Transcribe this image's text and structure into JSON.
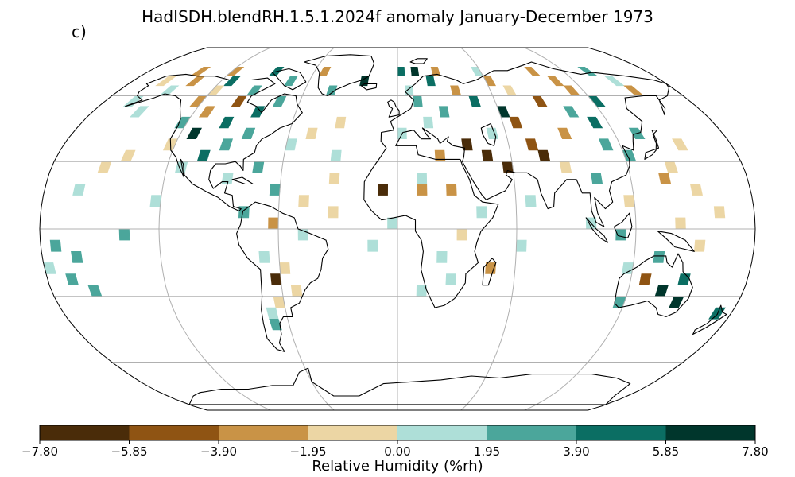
{
  "title": "HadISDH.blendRH.1.5.1.2024f anomaly January-December 1973",
  "panel_label": "c)",
  "colorbar": {
    "label": "Relative Humidity (%rh)",
    "ticks": [
      "−7.80",
      "−5.85",
      "−3.90",
      "−1.95",
      "0.00",
      "1.95",
      "3.90",
      "5.85",
      "7.80"
    ],
    "colors": [
      "#543005",
      "#8c510a",
      "#bf812d",
      "#dfc27d",
      "#f6e8c3",
      "#c7eae5",
      "#80cdc1",
      "#35978f",
      "#01665e",
      "#003c30"
    ],
    "bins": [
      "#4a2c09",
      "#8f5413",
      "#c99346",
      "#ecd6a4",
      "#aedfd8",
      "#4ba69b",
      "#0b6e63",
      "#00362c"
    ]
  },
  "map": {
    "projection": "Robinson",
    "gridlines": true,
    "coastlines": true
  },
  "chart_data": {
    "type": "heatmap",
    "title": "HadISDH.blendRH.1.5.1.2024f anomaly January-December 1973",
    "colorbar_label": "Relative Humidity (%rh)",
    "vmin": -7.8,
    "vmax": 7.8,
    "levels": [
      -7.8,
      -5.85,
      -3.9,
      -1.95,
      0.0,
      1.95,
      3.9,
      5.85,
      7.8
    ],
    "cells": [
      {
        "lat": 72.5,
        "lon": -142.5,
        "v": -2.5
      },
      {
        "lat": 72.5,
        "lon": -117.5,
        "v": -3.0
      },
      {
        "lat": 72.5,
        "lon": -87.5,
        "v": 5.0
      },
      {
        "lat": 72.5,
        "lon": -52.5,
        "v": -3.5
      },
      {
        "lat": 72.5,
        "lon": 2.5,
        "v": 5.5
      },
      {
        "lat": 72.5,
        "lon": 12.5,
        "v": 6.5
      },
      {
        "lat": 72.5,
        "lon": 27.5,
        "v": -2.5
      },
      {
        "lat": 72.5,
        "lon": 57.5,
        "v": 1.0
      },
      {
        "lat": 72.5,
        "lon": 97.5,
        "v": -3.0
      },
      {
        "lat": 72.5,
        "lon": 137.5,
        "v": 2.0
      },
      {
        "lat": 67.5,
        "lon": -157.5,
        "v": -1.5
      },
      {
        "lat": 67.5,
        "lon": -137.5,
        "v": -3.5
      },
      {
        "lat": 67.5,
        "lon": -112.5,
        "v": 4.0
      },
      {
        "lat": 67.5,
        "lon": -72.5,
        "v": 2.5
      },
      {
        "lat": 67.5,
        "lon": -22.5,
        "v": 6.0
      },
      {
        "lat": 67.5,
        "lon": 22.5,
        "v": 5.0
      },
      {
        "lat": 67.5,
        "lon": 62.5,
        "v": -2.0
      },
      {
        "lat": 67.5,
        "lon": 107.5,
        "v": -2.5
      },
      {
        "lat": 67.5,
        "lon": 147.5,
        "v": 1.5
      },
      {
        "lat": 62.5,
        "lon": -147.5,
        "v": 1.5
      },
      {
        "lat": 62.5,
        "lon": -117.5,
        "v": -1.5
      },
      {
        "lat": 62.5,
        "lon": -92.5,
        "v": 2.5
      },
      {
        "lat": 62.5,
        "lon": -42.5,
        "v": 2.0
      },
      {
        "lat": 62.5,
        "lon": 7.5,
        "v": 1.5
      },
      {
        "lat": 62.5,
        "lon": 37.5,
        "v": -3.0
      },
      {
        "lat": 62.5,
        "lon": 72.5,
        "v": -1.5
      },
      {
        "lat": 62.5,
        "lon": 112.5,
        "v": -3.5
      },
      {
        "lat": 62.5,
        "lon": 152.5,
        "v": -2.0
      },
      {
        "lat": 57.5,
        "lon": -162.5,
        "v": 1.5
      },
      {
        "lat": 57.5,
        "lon": -122.5,
        "v": -2.0
      },
      {
        "lat": 57.5,
        "lon": -97.5,
        "v": -4.5
      },
      {
        "lat": 57.5,
        "lon": -72.5,
        "v": 3.5
      },
      {
        "lat": 57.5,
        "lon": 12.5,
        "v": 2.5
      },
      {
        "lat": 57.5,
        "lon": 47.5,
        "v": 4.5
      },
      {
        "lat": 57.5,
        "lon": 87.5,
        "v": -4.0
      },
      {
        "lat": 57.5,
        "lon": 122.5,
        "v": 5.5
      },
      {
        "lat": 52.5,
        "lon": -152.5,
        "v": 1.0
      },
      {
        "lat": 52.5,
        "lon": -112.5,
        "v": -2.0
      },
      {
        "lat": 52.5,
        "lon": -82.5,
        "v": 4.0
      },
      {
        "lat": 52.5,
        "lon": 27.5,
        "v": 3.0
      },
      {
        "lat": 52.5,
        "lon": 62.5,
        "v": 6.0
      },
      {
        "lat": 52.5,
        "lon": 102.5,
        "v": 3.5
      },
      {
        "lat": 47.5,
        "lon": -122.5,
        "v": 3.0
      },
      {
        "lat": 47.5,
        "lon": -97.5,
        "v": 5.5
      },
      {
        "lat": 47.5,
        "lon": -32.5,
        "v": -1.5
      },
      {
        "lat": 47.5,
        "lon": 17.5,
        "v": 1.5
      },
      {
        "lat": 47.5,
        "lon": 67.5,
        "v": -4.0
      },
      {
        "lat": 47.5,
        "lon": 112.5,
        "v": 4.0
      },
      {
        "lat": 42.5,
        "lon": -112.5,
        "v": 6.0
      },
      {
        "lat": 42.5,
        "lon": -82.5,
        "v": 3.0
      },
      {
        "lat": 42.5,
        "lon": -47.5,
        "v": -1.0
      },
      {
        "lat": 42.5,
        "lon": 2.5,
        "v": 1.5
      },
      {
        "lat": 42.5,
        "lon": 52.5,
        "v": 1.5
      },
      {
        "lat": 42.5,
        "lon": 92.5,
        "v": -3.5
      },
      {
        "lat": 42.5,
        "lon": 132.5,
        "v": 2.5
      },
      {
        "lat": 37.5,
        "lon": -122.5,
        "v": -1.5
      },
      {
        "lat": 37.5,
        "lon": -92.5,
        "v": 2.5
      },
      {
        "lat": 37.5,
        "lon": -57.5,
        "v": 1.0
      },
      {
        "lat": 37.5,
        "lon": 37.5,
        "v": -6.5
      },
      {
        "lat": 37.5,
        "lon": 72.5,
        "v": -5.0
      },
      {
        "lat": 37.5,
        "lon": 112.5,
        "v": 3.0
      },
      {
        "lat": 37.5,
        "lon": 152.5,
        "v": -1.0
      },
      {
        "lat": 32.5,
        "lon": -142.5,
        "v": -1.5
      },
      {
        "lat": 32.5,
        "lon": -102.5,
        "v": 5.5
      },
      {
        "lat": 32.5,
        "lon": -32.5,
        "v": 1.5
      },
      {
        "lat": 32.5,
        "lon": 22.5,
        "v": -2.5
      },
      {
        "lat": 32.5,
        "lon": 47.5,
        "v": -7.0
      },
      {
        "lat": 32.5,
        "lon": 77.5,
        "v": -6.0
      },
      {
        "lat": 32.5,
        "lon": 122.5,
        "v": 2.0
      },
      {
        "lat": 27.5,
        "lon": -152.5,
        "v": -1.5
      },
      {
        "lat": 27.5,
        "lon": -112.5,
        "v": 1.5
      },
      {
        "lat": 27.5,
        "lon": -72.5,
        "v": 2.0
      },
      {
        "lat": 27.5,
        "lon": 57.5,
        "v": -6.5
      },
      {
        "lat": 27.5,
        "lon": 87.5,
        "v": -1.5
      },
      {
        "lat": 27.5,
        "lon": 142.5,
        "v": -1.5
      },
      {
        "lat": 22.5,
        "lon": -87.5,
        "v": 1.5
      },
      {
        "lat": 22.5,
        "lon": -32.5,
        "v": -1.5
      },
      {
        "lat": 22.5,
        "lon": 12.5,
        "v": 1.5
      },
      {
        "lat": 22.5,
        "lon": 102.5,
        "v": 2.0
      },
      {
        "lat": 22.5,
        "lon": 137.5,
        "v": -3.0
      },
      {
        "lat": 17.5,
        "lon": -162.5,
        "v": 1.0
      },
      {
        "lat": 17.5,
        "lon": -62.5,
        "v": 3.5
      },
      {
        "lat": 17.5,
        "lon": -7.5,
        "v": -7.0
      },
      {
        "lat": 17.5,
        "lon": 12.5,
        "v": -3.5
      },
      {
        "lat": 17.5,
        "lon": 27.5,
        "v": -3.0
      },
      {
        "lat": 17.5,
        "lon": 152.5,
        "v": -1.5
      },
      {
        "lat": 12.5,
        "lon": -122.5,
        "v": 1.5
      },
      {
        "lat": 12.5,
        "lon": -47.5,
        "v": -1.5
      },
      {
        "lat": 12.5,
        "lon": 67.5,
        "v": 1.5
      },
      {
        "lat": 12.5,
        "lon": 117.5,
        "v": -1.0
      },
      {
        "lat": 7.5,
        "lon": -77.5,
        "v": 2.5
      },
      {
        "lat": 7.5,
        "lon": -32.5,
        "v": -1.5
      },
      {
        "lat": 7.5,
        "lon": 42.5,
        "v": 1.5
      },
      {
        "lat": 7.5,
        "lon": 162.5,
        "v": -1.5
      },
      {
        "lat": 2.5,
        "lon": -62.5,
        "v": -3.5
      },
      {
        "lat": 2.5,
        "lon": -2.5,
        "v": 1.5
      },
      {
        "lat": 2.5,
        "lon": 97.5,
        "v": 1.5
      },
      {
        "lat": 2.5,
        "lon": 142.5,
        "v": -1.0
      },
      {
        "lat": -2.5,
        "lon": -137.5,
        "v": 3.5
      },
      {
        "lat": -2.5,
        "lon": -47.5,
        "v": 1.5
      },
      {
        "lat": -2.5,
        "lon": 32.5,
        "v": -1.5
      },
      {
        "lat": -2.5,
        "lon": 112.5,
        "v": 2.5
      },
      {
        "lat": -7.5,
        "lon": -172.5,
        "v": 3.0
      },
      {
        "lat": -7.5,
        "lon": -12.5,
        "v": 1.5
      },
      {
        "lat": -7.5,
        "lon": 62.5,
        "v": 1.5
      },
      {
        "lat": -7.5,
        "lon": 152.5,
        "v": -1.5
      },
      {
        "lat": -12.5,
        "lon": -162.5,
        "v": 2.5
      },
      {
        "lat": -12.5,
        "lon": -67.5,
        "v": 1.5
      },
      {
        "lat": -12.5,
        "lon": 22.5,
        "v": 1.5
      },
      {
        "lat": -12.5,
        "lon": 132.5,
        "v": 2.0
      },
      {
        "lat": -17.5,
        "lon": -177.5,
        "v": 1.5
      },
      {
        "lat": -17.5,
        "lon": -57.5,
        "v": -1.5
      },
      {
        "lat": -17.5,
        "lon": 47.5,
        "v": -2.5
      },
      {
        "lat": -17.5,
        "lon": 117.5,
        "v": 1.5
      },
      {
        "lat": -22.5,
        "lon": -167.5,
        "v": 3.5
      },
      {
        "lat": -22.5,
        "lon": -62.5,
        "v": -7.0
      },
      {
        "lat": -22.5,
        "lon": 27.5,
        "v": 1.5
      },
      {
        "lat": -22.5,
        "lon": 127.5,
        "v": -5.5
      },
      {
        "lat": -22.5,
        "lon": 147.5,
        "v": 4.0
      },
      {
        "lat": -27.5,
        "lon": -157.5,
        "v": 2.0
      },
      {
        "lat": -27.5,
        "lon": -52.5,
        "v": -1.5
      },
      {
        "lat": -27.5,
        "lon": 12.5,
        "v": 1.5
      },
      {
        "lat": -27.5,
        "lon": 137.5,
        "v": 6.0
      },
      {
        "lat": -32.5,
        "lon": -62.5,
        "v": -1.5
      },
      {
        "lat": -32.5,
        "lon": 117.5,
        "v": 2.5
      },
      {
        "lat": -32.5,
        "lon": 147.5,
        "v": 7.0
      },
      {
        "lat": -37.5,
        "lon": -67.5,
        "v": 1.5
      },
      {
        "lat": -37.5,
        "lon": 172.5,
        "v": 5.5
      },
      {
        "lat": -42.5,
        "lon": -67.5,
        "v": 2.0
      }
    ]
  }
}
